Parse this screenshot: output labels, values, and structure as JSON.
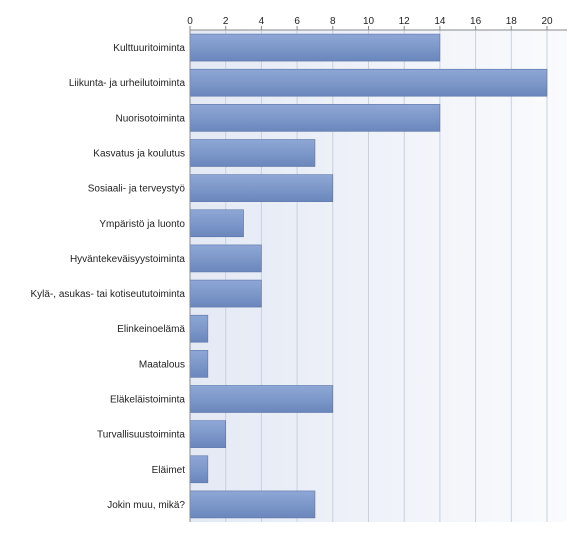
{
  "chart_data": {
    "type": "bar",
    "orientation": "horizontal",
    "categories": [
      "Kulttuuritoiminta",
      "Liikunta- ja urheilutoiminta",
      "Nuorisotoiminta",
      "Kasvatus ja koulutus",
      "Sosiaali- ja terveystyö",
      "Ympäristö ja luonto",
      "Hyväntekeväisyystoiminta",
      "Kylä-, asukas- tai kotiseututoiminta",
      "Elinkeinoelämä",
      "Maatalous",
      "Eläkeläistoiminta",
      "Turvallisuustoiminta",
      "Eläimet",
      "Jokin muu, mikä?"
    ],
    "values": [
      14,
      20,
      14,
      7,
      8,
      3,
      4,
      4,
      1,
      1,
      8,
      2,
      1,
      7
    ],
    "xlim": [
      0,
      21
    ],
    "xticks": [
      0,
      2,
      4,
      6,
      8,
      10,
      12,
      14,
      16,
      18,
      20
    ],
    "x_axis_position": "top",
    "grid": true,
    "legend": "none",
    "title": "",
    "xlabel": "",
    "ylabel": "",
    "bar_color": "#7b96c8",
    "bar_edge_color": "#5a74a8",
    "grid_color": "#c9d0e0",
    "plot_bg_left": "#e4e9f4",
    "plot_bg_right": "#fafbfd"
  }
}
